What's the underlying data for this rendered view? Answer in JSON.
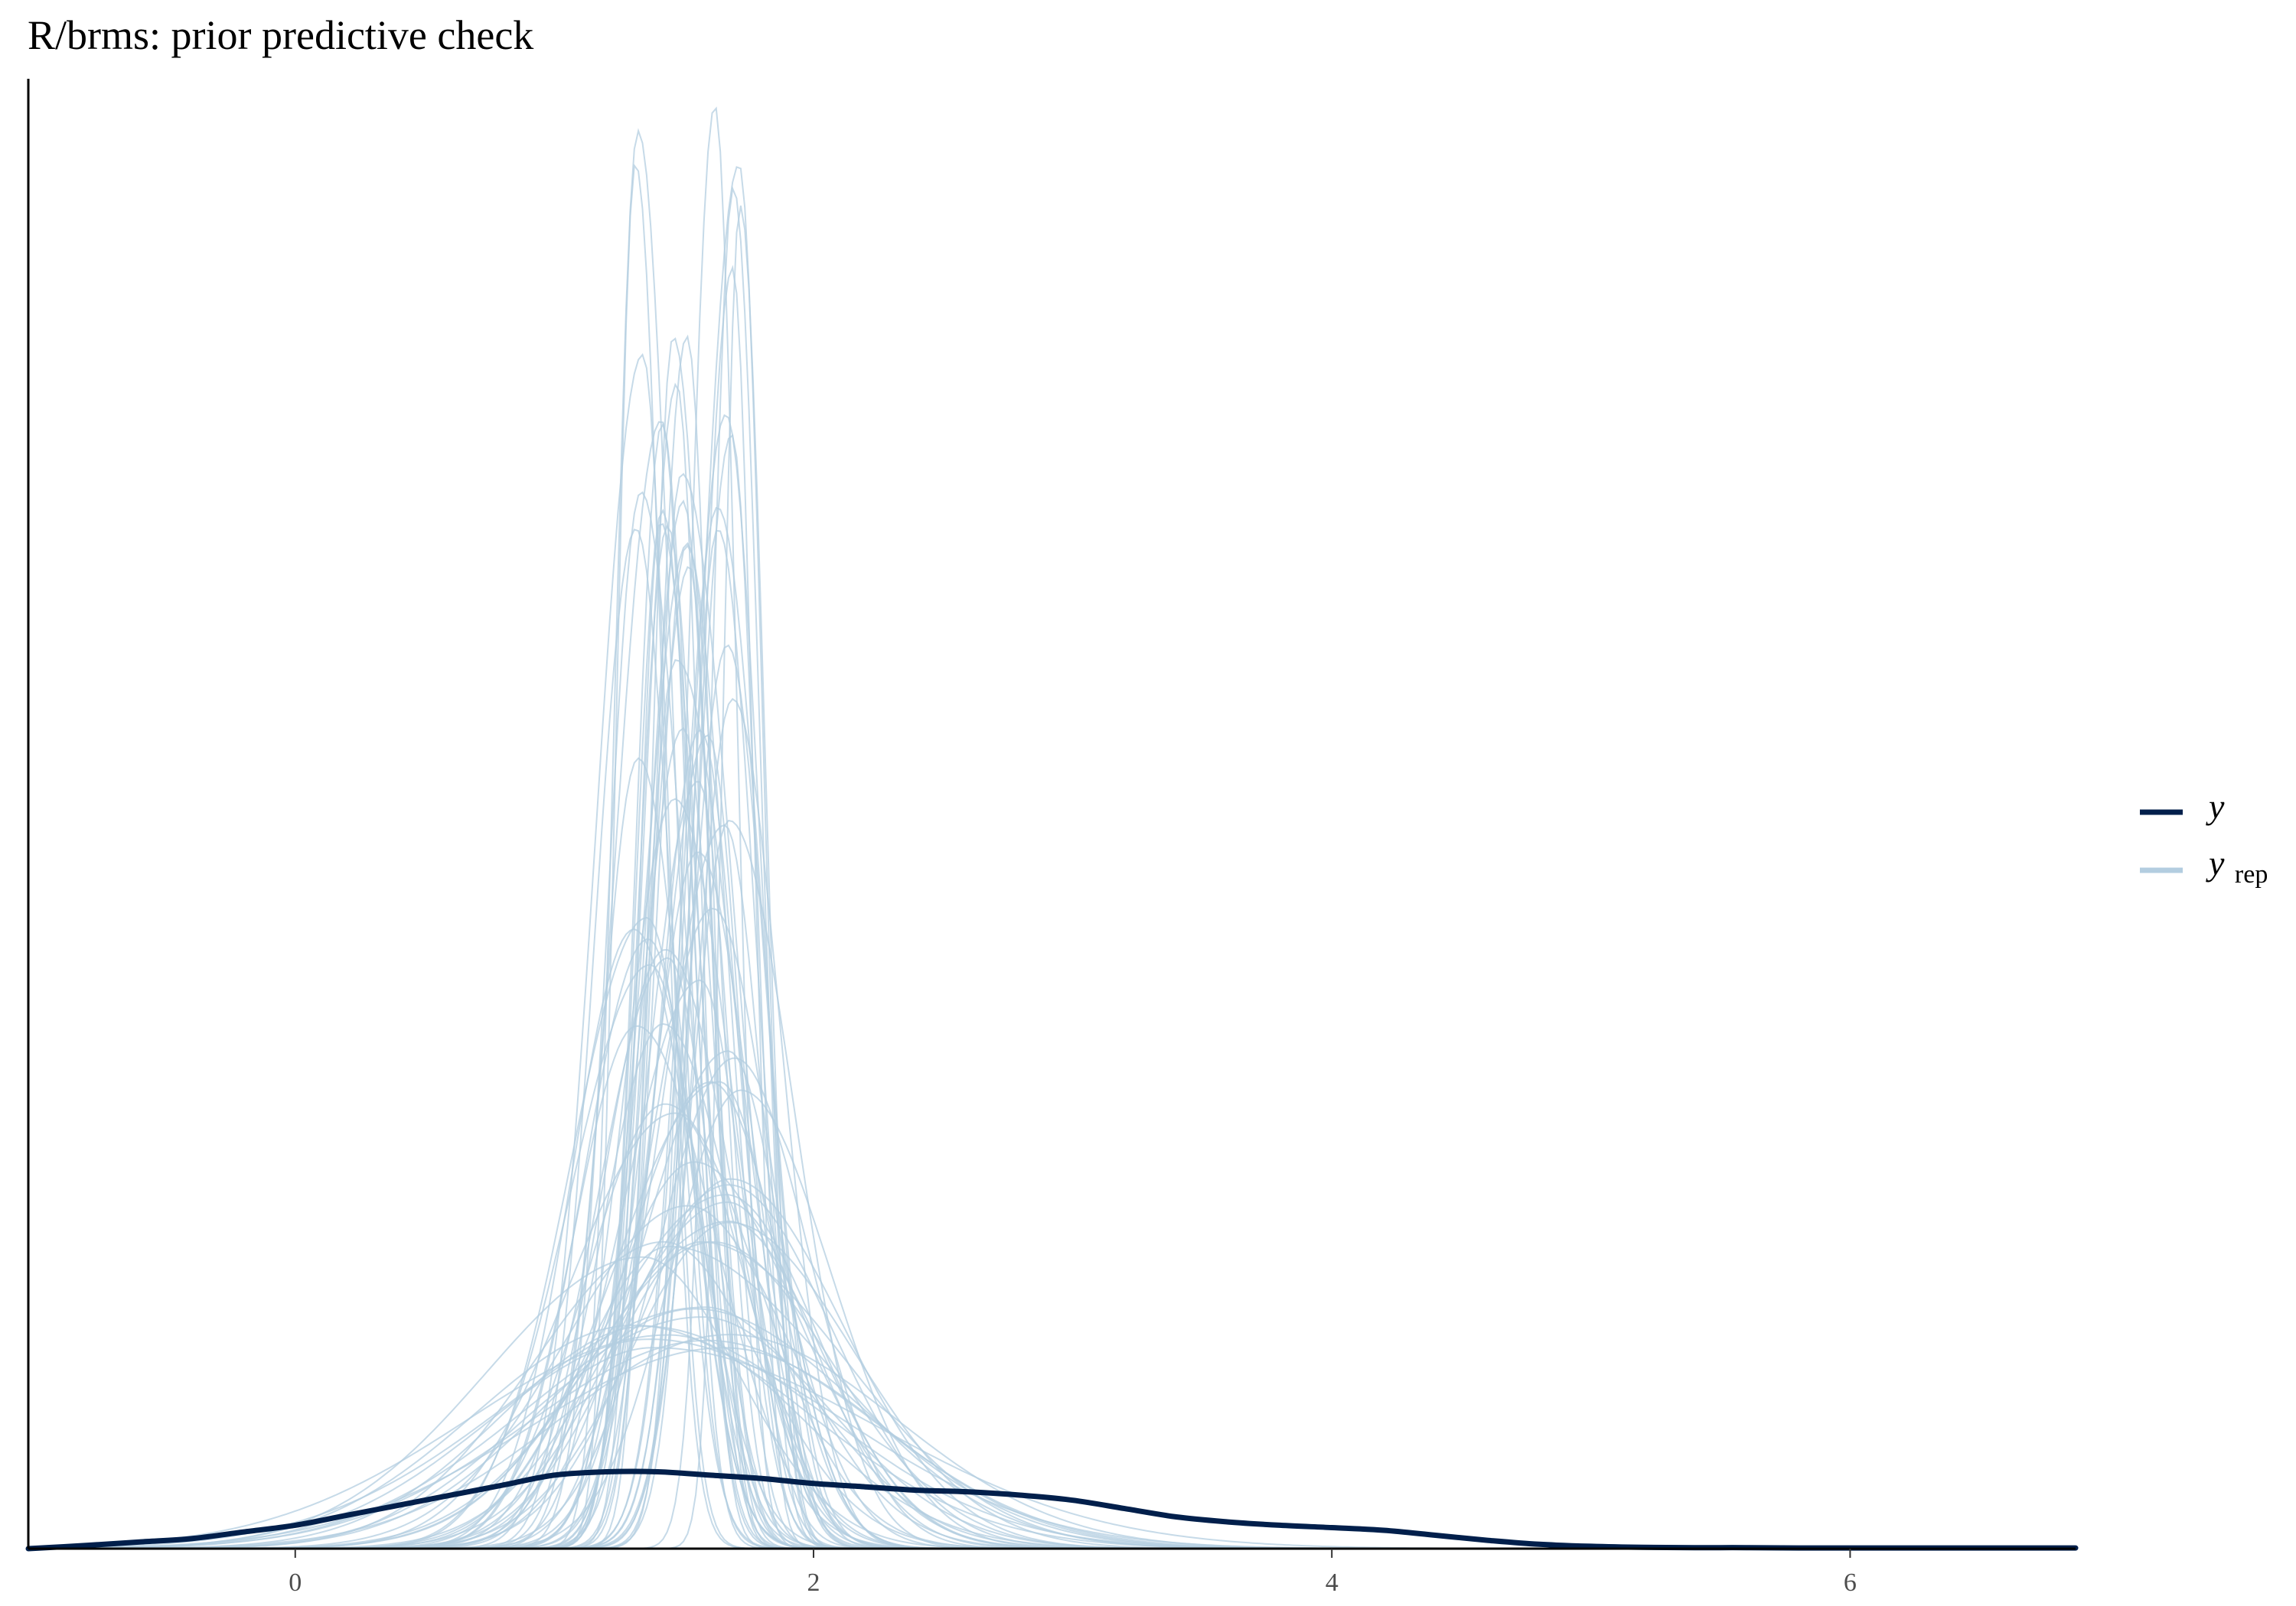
{
  "chart_data": {
    "type": "line",
    "title": "R/brms: prior predictive check",
    "xlabel": "",
    "ylabel": "",
    "xlim": [
      -1.03,
      6.87
    ],
    "ylim": [
      0,
      4.4
    ],
    "xticks": [
      0,
      2,
      4,
      6
    ],
    "xtick_labels": [
      "0",
      "2",
      "4",
      "6"
    ],
    "grid": false,
    "legend_position": "right",
    "legend": [
      {
        "label": "y",
        "subscript": "",
        "color": "#011f4b"
      },
      {
        "label": "y",
        "subscript": "rep",
        "color": "#b3cde0"
      }
    ],
    "series": [
      {
        "name": "y",
        "color": "#011f4b",
        "x": [
          -1.03,
          -0.8,
          -0.6,
          -0.4,
          -0.2,
          0.0,
          0.2,
          0.4,
          0.6,
          0.8,
          1.0,
          1.2,
          1.4,
          1.6,
          1.8,
          2.0,
          2.2,
          2.4,
          2.6,
          2.8,
          3.0,
          3.2,
          3.4,
          3.6,
          3.8,
          4.0,
          4.2,
          4.4,
          4.6,
          4.8,
          5.0,
          5.2,
          5.4,
          5.6,
          5.8,
          6.0,
          6.2,
          6.4,
          6.6,
          6.87
        ],
        "values": [
          0.0,
          0.01,
          0.02,
          0.03,
          0.05,
          0.07,
          0.1,
          0.13,
          0.16,
          0.19,
          0.22,
          0.23,
          0.23,
          0.22,
          0.21,
          0.195,
          0.185,
          0.175,
          0.17,
          0.16,
          0.145,
          0.12,
          0.095,
          0.08,
          0.07,
          0.063,
          0.055,
          0.04,
          0.025,
          0.013,
          0.007,
          0.004,
          0.003,
          0.003,
          0.002,
          0.002,
          0.002,
          0.002,
          0.002,
          0.002
        ]
      }
    ],
    "yrep_draws": {
      "name": "y_rep",
      "color": "#b3cde0",
      "count": 80,
      "distribution": "mostly peaked densities centered between x = 1.25 and x = 1.75, peak heights from about 0.6 to 4.4"
    }
  }
}
